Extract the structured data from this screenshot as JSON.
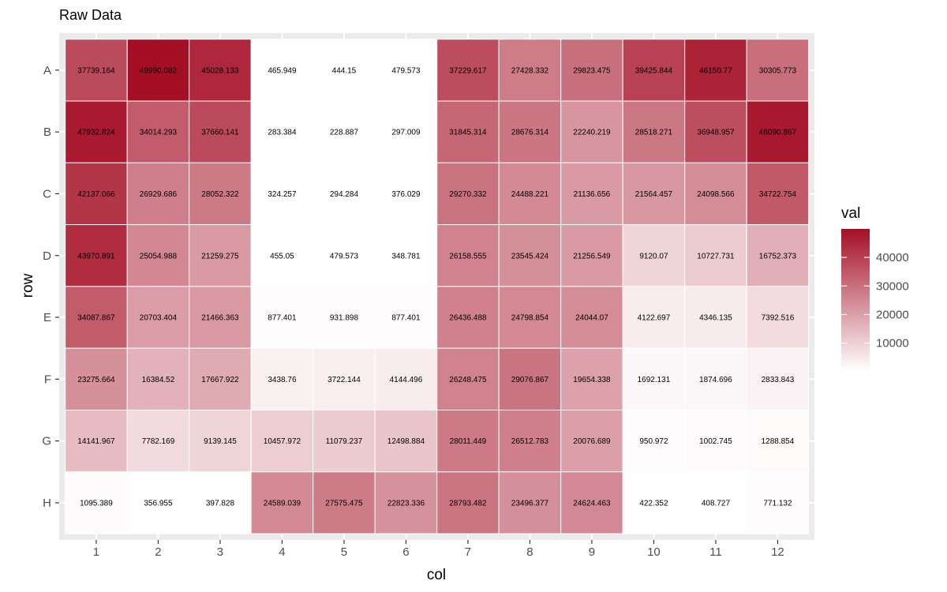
{
  "chart_data": {
    "type": "heatmap",
    "title": "Raw Data",
    "xlabel": "col",
    "ylabel": "row",
    "x_categories": [
      "1",
      "2",
      "3",
      "4",
      "5",
      "6",
      "7",
      "8",
      "9",
      "10",
      "11",
      "12"
    ],
    "y_categories": [
      "A",
      "B",
      "C",
      "D",
      "E",
      "F",
      "G",
      "H"
    ],
    "values": [
      [
        "37739.164",
        "49990.082",
        "45028.133",
        "465.949",
        "444.15",
        "479.573",
        "37229.617",
        "27428.332",
        "29823.475",
        "39425.844",
        "46150.77",
        "30305.773"
      ],
      [
        "47932.824",
        "34014.293",
        "37660.141",
        "283.384",
        "228.887",
        "297.009",
        "31845.314",
        "28676.314",
        "22240.219",
        "28518.271",
        "36948.957",
        "48090.867"
      ],
      [
        "42137.066",
        "26929.686",
        "28052.322",
        "324.257",
        "294.284",
        "376.029",
        "29270.332",
        "24488.221",
        "21136.656",
        "21564.457",
        "24098.566",
        "34722.754"
      ],
      [
        "43970.891",
        "25054.988",
        "21259.275",
        "455.05",
        "479.573",
        "348.781",
        "26158.555",
        "23545.424",
        "21256.549",
        "9120.07",
        "10727.731",
        "16752.373"
      ],
      [
        "34087.867",
        "20703.404",
        "21466.363",
        "877.401",
        "931.898",
        "877.401",
        "26436.488",
        "24798.854",
        "24044.07",
        "4122.697",
        "4346.135",
        "7392.516"
      ],
      [
        "23275.664",
        "16384.52",
        "17667.922",
        "3438.76",
        "3722.144",
        "4144.496",
        "26248.475",
        "29076.867",
        "19654.338",
        "1692.131",
        "1874.696",
        "2833.843"
      ],
      [
        "14141.967",
        "7782.169",
        "9139.145",
        "10457.972",
        "11079.237",
        "12498.884",
        "28011.449",
        "26512.783",
        "20076.689",
        "950.972",
        "1002.745",
        "1288.854"
      ],
      [
        "1095.389",
        "356.955",
        "397.828",
        "24589.039",
        "27575.475",
        "22823.336",
        "28793.482",
        "23496.377",
        "24624.463",
        "422.352",
        "408.727",
        "771.132"
      ]
    ],
    "legend": {
      "title": "val",
      "breaks": [
        "10000",
        "20000",
        "30000",
        "40000"
      ],
      "range": [
        228.887,
        49990.082
      ],
      "low_color": "#ffffff",
      "high_color": "#a50f26",
      "position": "right"
    },
    "panel_background": "#ebebeb",
    "tile_border_color": "#ffffff",
    "grid": true
  }
}
